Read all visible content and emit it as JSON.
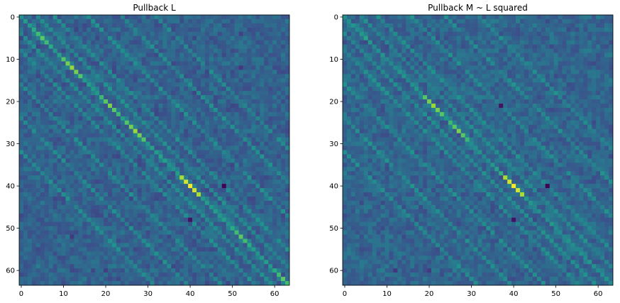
{
  "chart_data": [
    {
      "type": "heatmap",
      "title": "Pullback L",
      "xlabel": "",
      "ylabel": "",
      "rows": 64,
      "cols": 64,
      "x_ticks": [
        0,
        10,
        20,
        30,
        40,
        50,
        60
      ],
      "y_ticks": [
        0,
        10,
        20,
        30,
        40,
        50,
        60
      ],
      "colormap": "viridis",
      "description_of_values": "",
      "diagonal_base": 0.55,
      "diagonal_strong": [
        [
          5,
          0.75
        ],
        [
          12,
          0.85
        ],
        [
          21,
          0.8
        ],
        [
          27,
          0.85
        ],
        [
          40,
          1.0
        ],
        [
          52,
          0.75
        ],
        [
          62,
          0.75
        ]
      ],
      "off_diagonal_offsets": [
        4,
        8,
        16,
        24,
        32
      ],
      "special_points": [
        [
          40,
          40,
          1.0
        ],
        [
          40,
          48,
          0.0
        ],
        [
          48,
          40,
          0.05
        ]
      ],
      "background": 0.32
    },
    {
      "type": "heatmap",
      "title": "Pullback M ~ L squared",
      "xlabel": "",
      "ylabel": "",
      "rows": 64,
      "cols": 64,
      "x_ticks": [
        0,
        10,
        20,
        30,
        40,
        50,
        60
      ],
      "y_ticks": [
        0,
        10,
        20,
        30,
        40,
        50,
        60
      ],
      "colormap": "viridis",
      "diagonal_base": 0.5,
      "diagonal_strong": [
        [
          5,
          0.6
        ],
        [
          21,
          0.85
        ],
        [
          27,
          0.8
        ],
        [
          40,
          1.0
        ],
        [
          37,
          0.65
        ]
      ],
      "off_diagonal_offsets": [
        4,
        8,
        16,
        24,
        32
      ],
      "special_points": [
        [
          40,
          40,
          1.0
        ],
        [
          40,
          48,
          0.0
        ],
        [
          48,
          40,
          0.05
        ],
        [
          21,
          37,
          0.05
        ],
        [
          37,
          37,
          0.65
        ]
      ],
      "background": 0.33
    }
  ]
}
